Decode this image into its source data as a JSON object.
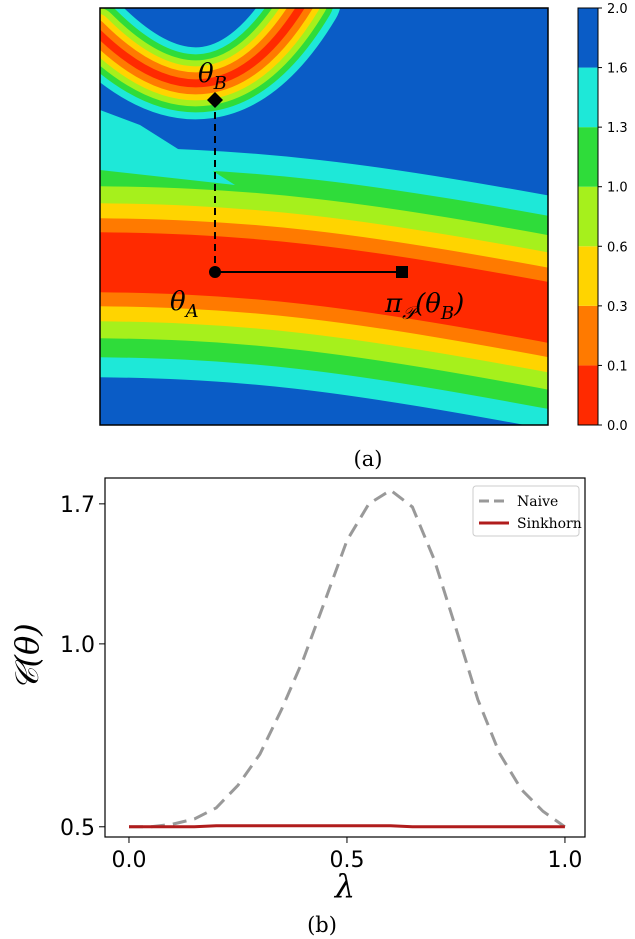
{
  "chart_data": [
    {
      "type": "contour",
      "caption": "(a)",
      "colorbar": {
        "ticks": [
          {
            "value": 0,
            "label": "0.0"
          },
          0.1,
          0.3,
          0.6,
          {
            "value": 1,
            "label": "1.0"
          },
          1.3,
          1.6,
          {
            "value": 2,
            "label": "2.0"
          }
        ],
        "colors": [
          "#ff2a00",
          "#ff7a00",
          "#ffd400",
          "#a6f01c",
          "#2fdc3a",
          "#1ee8d8",
          "#0a5cc6"
        ]
      },
      "points": [
        {
          "marker": "diamond",
          "label": [
            {
              "text": "θ"
            },
            {
              "sub": "B"
            }
          ]
        },
        {
          "marker": "circle",
          "label": [
            {
              "text": "θ"
            },
            {
              "sub": "A"
            }
          ]
        },
        {
          "marker": "square",
          "label": [
            {
              "text": "π"
            },
            {
              "sub": "𝒫"
            },
            {
              "text": "(θ"
            },
            {
              "sub": "B"
            },
            {
              "text": ")"
            }
          ]
        }
      ]
    },
    {
      "type": "line",
      "caption": "(b)",
      "xlabel": "λ",
      "ylabel": "𝒞(θ)",
      "log_y": true,
      "x": [
        0,
        0.05,
        0.1,
        0.15,
        0.2,
        0.25,
        0.3,
        0.35,
        0.4,
        0.45,
        0.5,
        0.55,
        0.6,
        0.65,
        0.7,
        0.75,
        0.8,
        0.85,
        0.9,
        0.95,
        1.0
      ],
      "series": [
        {
          "name": "Naive",
          "color": "#999999",
          "dash": true,
          "values": [
            0.5,
            0.5,
            0.505,
            0.515,
            0.537,
            0.585,
            0.658,
            0.78,
            0.944,
            1.18,
            1.48,
            1.7,
            1.79,
            1.68,
            1.377,
            1.06,
            0.81,
            0.66,
            0.576,
            0.53,
            0.5
          ]
        },
        {
          "name": "Sinkhorn",
          "color": "#b01c1c",
          "dash": false,
          "values": [
            0.5,
            0.5,
            0.5,
            0.5,
            0.502,
            0.502,
            0.502,
            0.502,
            0.502,
            0.502,
            0.502,
            0.502,
            0.502,
            0.5,
            0.5,
            0.5,
            0.5,
            0.5,
            0.5,
            0.5,
            0.5
          ]
        }
      ],
      "xlim": [
        -0.055,
        1.046
      ],
      "ylim": [
        0.481,
        1.875
      ],
      "xticks": [
        {
          "value": 0,
          "label": "0.0"
        },
        0.5,
        {
          "value": 1,
          "label": "1.0"
        }
      ],
      "yticks": [
        0.5,
        {
          "value": 1,
          "label": "1.0"
        },
        1.7
      ],
      "legend": "upper-right"
    }
  ]
}
